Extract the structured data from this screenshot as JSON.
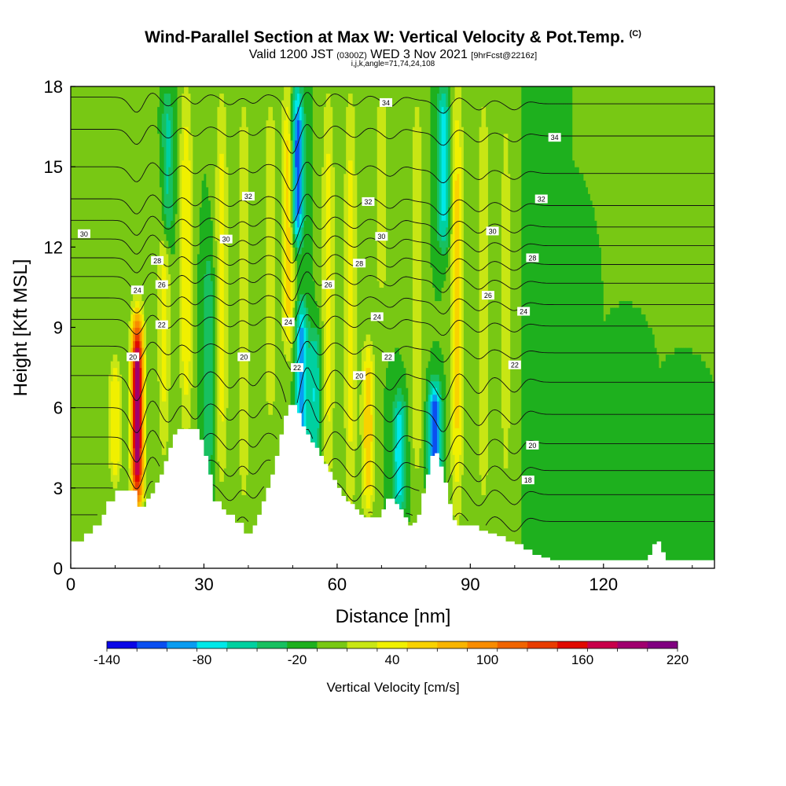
{
  "header": {
    "title": "Wind-Parallel Section at Max W: Vertical Velocity & Pot.Temp.",
    "copyright": "(C)",
    "valid_prefix": "Valid 1200 JST",
    "valid_utc": "(0300Z)",
    "valid_date": "WED 3 Nov 2021",
    "forecast": "[9hrFcst@2216z]",
    "section_params": "i,j,k,angle=71,74,24,108"
  },
  "chart_data": {
    "type": "heatmap",
    "xlabel": "Distance [nm]",
    "ylabel": "Height [Kft MSL]",
    "xlim": [
      0,
      145
    ],
    "ylim": [
      0,
      18
    ],
    "x_ticks": [
      0,
      30,
      60,
      90,
      120
    ],
    "y_ticks": [
      0,
      3,
      6,
      9,
      12,
      15,
      18
    ],
    "terrain": {
      "x": [
        0,
        1,
        3,
        5,
        7,
        8,
        10,
        12,
        14,
        15,
        16,
        17,
        18,
        19,
        20,
        21,
        22,
        23,
        24,
        25,
        27,
        29,
        30,
        31,
        32,
        34,
        35,
        37,
        39,
        41,
        42,
        43,
        44,
        45,
        46,
        47,
        48,
        49,
        50,
        51,
        52,
        53,
        54,
        55,
        56,
        57,
        58,
        59,
        60,
        61,
        62,
        63,
        64,
        65,
        66,
        68,
        70,
        71,
        72,
        73,
        74,
        75,
        76,
        77,
        78,
        79,
        80,
        81,
        82,
        83,
        84,
        85,
        86,
        87,
        89,
        92,
        94,
        96,
        98,
        100,
        102,
        104,
        106,
        108,
        110,
        112,
        114,
        116,
        118,
        120,
        122,
        124,
        126,
        128,
        130,
        131,
        132,
        133,
        134,
        136,
        138,
        140,
        142,
        145
      ],
      "height": [
        1.0,
        1.0,
        1.3,
        1.6,
        2.0,
        2.5,
        2.9,
        2.9,
        2.9,
        2.3,
        2.3,
        2.6,
        2.8,
        3.2,
        3.5,
        4.0,
        4.5,
        5.0,
        5.2,
        5.2,
        5.2,
        4.8,
        4.2,
        3.5,
        2.5,
        2.2,
        2.0,
        1.7,
        1.3,
        1.6,
        2.0,
        2.5,
        3.0,
        3.5,
        4.2,
        5.0,
        5.7,
        6.1,
        6.1,
        5.8,
        5.3,
        5.0,
        4.7,
        4.5,
        4.2,
        3.9,
        3.6,
        3.3,
        3.0,
        2.7,
        2.5,
        2.4,
        2.2,
        2.0,
        1.9,
        1.9,
        2.2,
        2.6,
        2.6,
        2.4,
        2.2,
        1.9,
        1.6,
        1.7,
        2.0,
        2.8,
        3.5,
        4.2,
        4.3,
        3.8,
        3.2,
        2.4,
        1.8,
        1.6,
        1.6,
        1.4,
        1.3,
        1.2,
        1.0,
        0.9,
        0.7,
        0.5,
        0.4,
        0.3,
        0.3,
        0.3,
        0.3,
        0.3,
        0.3,
        0.3,
        0.3,
        0.3,
        0.3,
        0.3,
        0.5,
        0.9,
        1.0,
        0.6,
        0.3,
        0.3,
        0.3,
        0.3,
        0.3,
        0.3
      ]
    },
    "vertical_velocity": {
      "units": "cm/s",
      "background": 0,
      "features": [
        {
          "x": 15,
          "z_bottom": 2.3,
          "z_top": 9.5,
          "peak": 220
        },
        {
          "x": 10,
          "z_bottom": 3.0,
          "z_top": 8.0,
          "peak": 60
        },
        {
          "x": 21,
          "z_bottom": 4.0,
          "z_top": 18.0,
          "peak": 50
        },
        {
          "x": 21.5,
          "z_bottom": 12.0,
          "z_top": 18.0,
          "peak": -80
        },
        {
          "x": 26,
          "z_bottom": 5.0,
          "z_top": 18.0,
          "peak": 60
        },
        {
          "x": 31,
          "z_bottom": 3.0,
          "z_top": 12.0,
          "peak": -40
        },
        {
          "x": 34,
          "z_bottom": 3.0,
          "z_top": 18.0,
          "peak": 50
        },
        {
          "x": 39,
          "z_bottom": 2.0,
          "z_top": 18.0,
          "peak": 40
        },
        {
          "x": 45,
          "z_bottom": 5.0,
          "z_top": 18.0,
          "peak": 40
        },
        {
          "x": 49,
          "z_bottom": 8.0,
          "z_top": 18.0,
          "peak": 80
        },
        {
          "x": 52,
          "z_bottom": 4.0,
          "z_top": 10.0,
          "peak": -100
        },
        {
          "x": 51,
          "z_bottom": 12.0,
          "z_top": 18.0,
          "peak": -120
        },
        {
          "x": 55,
          "z_bottom": 4.0,
          "z_top": 9.0,
          "peak": -60
        },
        {
          "x": 58,
          "z_bottom": 3.0,
          "z_top": 18.0,
          "peak": 50
        },
        {
          "x": 63,
          "z_bottom": 2.0,
          "z_top": 18.0,
          "peak": 50
        },
        {
          "x": 67,
          "z_bottom": 2.0,
          "z_top": 8.5,
          "peak": 80
        },
        {
          "x": 70,
          "z_bottom": 10.0,
          "z_top": 18.0,
          "peak": 40
        },
        {
          "x": 74,
          "z_bottom": 2.0,
          "z_top": 6.5,
          "peak": -80
        },
        {
          "x": 78,
          "z_bottom": 3.0,
          "z_top": 18.0,
          "peak": 40
        },
        {
          "x": 82,
          "z_bottom": 3.0,
          "z_top": 7.0,
          "peak": -120
        },
        {
          "x": 84,
          "z_bottom": 12.0,
          "z_top": 18.0,
          "peak": -80
        },
        {
          "x": 87,
          "z_bottom": 2.0,
          "z_top": 18.0,
          "peak": 70
        },
        {
          "x": 93,
          "z_bottom": 2.0,
          "z_top": 18.0,
          "peak": 40
        },
        {
          "x": 98,
          "z_bottom": 2.0,
          "z_top": 18.0,
          "peak": 30
        },
        {
          "x": 105,
          "z_bottom": 0.5,
          "z_top": 18.0,
          "peak": -20
        },
        {
          "x": 112,
          "z_bottom": 0.5,
          "z_top": 9.0,
          "peak": -20
        },
        {
          "x": 125,
          "z_bottom": 0.5,
          "z_top": 6.0,
          "peak": -20
        },
        {
          "x": 138,
          "z_bottom": 0.5,
          "z_top": 5.0,
          "peak": -20
        }
      ]
    },
    "potential_temperature": {
      "label_levels": [
        "18",
        "20",
        "22",
        "24",
        "26",
        "28",
        "30",
        "32",
        "34"
      ],
      "labels": [
        {
          "text": "34",
          "x": 71,
          "y": 17.4
        },
        {
          "text": "34",
          "x": 109,
          "y": 16.1
        },
        {
          "text": "32",
          "x": 40,
          "y": 13.9
        },
        {
          "text": "32",
          "x": 67,
          "y": 13.7
        },
        {
          "text": "32",
          "x": 106,
          "y": 13.8
        },
        {
          "text": "30",
          "x": 3,
          "y": 12.5
        },
        {
          "text": "30",
          "x": 35,
          "y": 12.3
        },
        {
          "text": "30",
          "x": 70,
          "y": 12.4
        },
        {
          "text": "30",
          "x": 95,
          "y": 12.6
        },
        {
          "text": "28",
          "x": 19.5,
          "y": 11.5
        },
        {
          "text": "28",
          "x": 65,
          "y": 11.4
        },
        {
          "text": "28",
          "x": 104,
          "y": 11.6
        },
        {
          "text": "26",
          "x": 20.5,
          "y": 10.6
        },
        {
          "text": "26",
          "x": 58,
          "y": 10.6
        },
        {
          "text": "26",
          "x": 94,
          "y": 10.2
        },
        {
          "text": "24",
          "x": 15,
          "y": 10.4
        },
        {
          "text": "24",
          "x": 49,
          "y": 9.2
        },
        {
          "text": "24",
          "x": 69,
          "y": 9.4
        },
        {
          "text": "24",
          "x": 102,
          "y": 9.6
        },
        {
          "text": "22",
          "x": 20.5,
          "y": 9.1
        },
        {
          "text": "22",
          "x": 51,
          "y": 7.5
        },
        {
          "text": "22",
          "x": 71.5,
          "y": 7.9
        },
        {
          "text": "22",
          "x": 100,
          "y": 7.6
        },
        {
          "text": "20",
          "x": 14,
          "y": 7.9
        },
        {
          "text": "20",
          "x": 39,
          "y": 7.9
        },
        {
          "text": "20",
          "x": 65,
          "y": 7.2
        },
        {
          "text": "20",
          "x": 104,
          "y": 4.6
        },
        {
          "text": "18",
          "x": 103,
          "y": 3.3
        }
      ]
    },
    "colorbar": {
      "title": "Vertical Velocity [cm/s]",
      "min": -140,
      "max": 220,
      "step": 20,
      "tick_labels": [
        "-140",
        "-80",
        "-20",
        "40",
        "100",
        "160",
        "220"
      ],
      "colors": [
        "#0a06e6",
        "#0b4ff0",
        "#0a9cf0",
        "#00e8e8",
        "#00d0a0",
        "#18c060",
        "#1eb01e",
        "#78c814",
        "#c8e614",
        "#f0f000",
        "#f8d200",
        "#f8b400",
        "#f88c00",
        "#f06400",
        "#e83c00",
        "#e00a00",
        "#c8004a",
        "#a0006e",
        "#800080"
      ]
    }
  }
}
